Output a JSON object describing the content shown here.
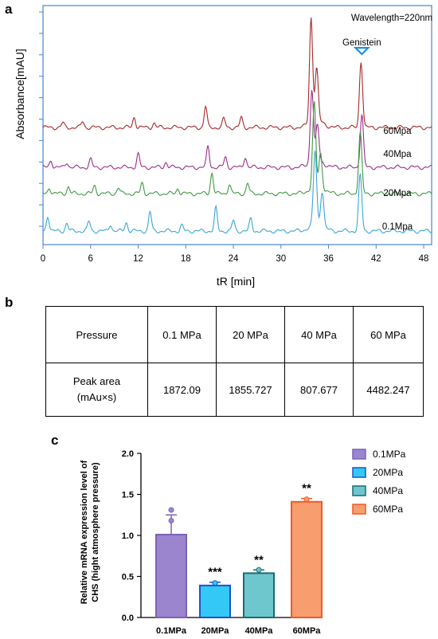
{
  "panels": {
    "a": "a",
    "b": "b",
    "c": "c"
  },
  "chart_data": [
    {
      "type": "line",
      "ylabel": "Absorbance[mAU]",
      "xlabel": "tR [min]",
      "xlim": [
        0,
        49
      ],
      "xticks": [
        "0",
        "6",
        "12",
        "18",
        "24",
        "30",
        "36",
        "42",
        "48"
      ],
      "annotation": "Wavelength=220nm",
      "peak_label": "Genistein",
      "peak_x": 40.2,
      "series": [
        {
          "name": "60Mpa",
          "color": "#a52a2a",
          "peaks": [
            [
              2.5,
              0.25
            ],
            [
              5.0,
              0.35
            ],
            [
              11.5,
              0.6
            ],
            [
              14.0,
              0.25
            ],
            [
              20.5,
              1.2
            ],
            [
              22.8,
              0.5
            ],
            [
              25.0,
              0.55
            ],
            [
              33.8,
              6.0
            ],
            [
              34.5,
              3.0
            ],
            [
              40.1,
              3.8
            ]
          ]
        },
        {
          "name": "40Mpa",
          "color": "#9c2e8a",
          "peaks": [
            [
              1.0,
              0.4
            ],
            [
              3.0,
              0.3
            ],
            [
              6.0,
              0.45
            ],
            [
              12.0,
              0.75
            ],
            [
              15.5,
              0.3
            ],
            [
              20.8,
              1.2
            ],
            [
              23.0,
              0.6
            ],
            [
              25.5,
              0.6
            ],
            [
              33.9,
              4.2
            ],
            [
              34.6,
              2.0
            ],
            [
              40.2,
              3.0
            ]
          ]
        },
        {
          "name": "20Mpa",
          "color": "#3e9a45",
          "peaks": [
            [
              0.8,
              0.35
            ],
            [
              3.2,
              0.4
            ],
            [
              6.5,
              0.45
            ],
            [
              9.5,
              0.35
            ],
            [
              12.5,
              0.6
            ],
            [
              17.0,
              0.3
            ],
            [
              21.3,
              1.2
            ],
            [
              23.5,
              0.55
            ],
            [
              25.8,
              0.6
            ],
            [
              34.2,
              4.8
            ],
            [
              35.0,
              2.0
            ],
            [
              40.0,
              3.5
            ]
          ]
        },
        {
          "name": "0.1Mpa",
          "color": "#3aa6d6",
          "peaks": [
            [
              0.6,
              0.9
            ],
            [
              3.0,
              0.45
            ],
            [
              5.8,
              0.55
            ],
            [
              8.5,
              0.4
            ],
            [
              10.5,
              0.5
            ],
            [
              13.5,
              1.1
            ],
            [
              17.5,
              0.3
            ],
            [
              21.8,
              1.3
            ],
            [
              24.0,
              0.6
            ],
            [
              26.2,
              0.7
            ],
            [
              34.3,
              4.2
            ],
            [
              35.2,
              2.0
            ],
            [
              40.0,
              3.2
            ]
          ]
        }
      ]
    },
    {
      "type": "table",
      "rows": [
        [
          "Pressure",
          "0.1 MPa",
          "20 MPa",
          "40 MPa",
          "60 MPa"
        ],
        [
          "Peak area (mAu×s)",
          "1872.09",
          "1855.727",
          "807.677",
          "4482.247"
        ]
      ]
    },
    {
      "type": "bar",
      "ylabel_lines": [
        "Relative mRNA expression level of",
        "CHS (hight atmosphere pressure)"
      ],
      "categories": [
        "0.1MPa",
        "20MPa",
        "40MPa",
        "60MPa"
      ],
      "values": [
        1.01,
        0.39,
        0.54,
        1.41
      ],
      "errors": [
        0.24,
        0.04,
        0.04,
        0.04
      ],
      "points": [
        [
          1.31,
          1.18
        ],
        [
          0.42
        ],
        [
          0.58
        ],
        [
          1.44
        ]
      ],
      "significance": [
        "",
        "***",
        "**",
        "**"
      ],
      "ylim": [
        0,
        2.0
      ],
      "yticks": [
        "0.0",
        "0.5",
        "1.0",
        "1.5",
        "2.0"
      ],
      "colors": [
        {
          "fill": "#9b85cf",
          "edge": "#7a63b5"
        },
        {
          "fill": "#33c8f6",
          "edge": "#1a55c8"
        },
        {
          "fill": "#6ec7cc",
          "edge": "#1a6b72"
        },
        {
          "fill": "#f79d6e",
          "edge": "#ef5a28"
        }
      ],
      "legend": [
        "0.1MPa",
        "20MPa",
        "40MPa",
        "60MPa"
      ]
    }
  ]
}
